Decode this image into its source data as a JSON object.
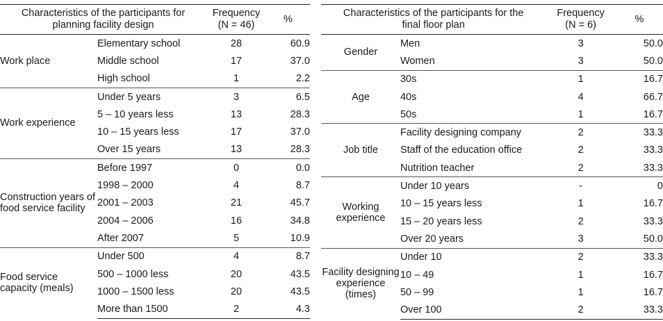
{
  "left_table": {
    "headers": {
      "characteristics": "Characteristics of the participants for planning facility design",
      "frequency": "Frequency (N = 46)",
      "percent": "%"
    },
    "groups": [
      {
        "label": "Work place",
        "rows": [
          {
            "category": "Elementary school",
            "frequency": "28",
            "percent": "60.9"
          },
          {
            "category": "Middle school",
            "frequency": "17",
            "percent": "37.0"
          },
          {
            "category": "High school",
            "frequency": "1",
            "percent": "2.2"
          }
        ]
      },
      {
        "label": "Work experience",
        "rows": [
          {
            "category": "Under 5 years",
            "frequency": "3",
            "percent": "6.5"
          },
          {
            "category": "5 – 10 years less",
            "frequency": "13",
            "percent": "28.3"
          },
          {
            "category": "10 – 15 years less",
            "frequency": "17",
            "percent": "37.0"
          },
          {
            "category": "Over 15 years",
            "frequency": "13",
            "percent": "28.3"
          }
        ]
      },
      {
        "label": "Construction years of food service facility",
        "rows": [
          {
            "category": "Before 1997",
            "frequency": "0",
            "percent": "0.0"
          },
          {
            "category": "1998 – 2000",
            "frequency": "4",
            "percent": "8.7"
          },
          {
            "category": "2001 – 2003",
            "frequency": "21",
            "percent": "45.7"
          },
          {
            "category": "2004 – 2006",
            "frequency": "16",
            "percent": "34.8"
          },
          {
            "category": "After 2007",
            "frequency": "5",
            "percent": "10.9"
          }
        ]
      },
      {
        "label": "Food service capacity (meals)",
        "rows": [
          {
            "category": "Under 500",
            "frequency": "4",
            "percent": "8.7"
          },
          {
            "category": "500 – 1000 less",
            "frequency": "20",
            "percent": "43.5"
          },
          {
            "category": "1000 – 1500 less",
            "frequency": "20",
            "percent": "43.5"
          },
          {
            "category": "More than 1500",
            "frequency": "2",
            "percent": "4.3"
          }
        ]
      }
    ]
  },
  "right_table": {
    "headers": {
      "characteristics": "Characteristics of the participants for the final floor plan",
      "frequency": "Frequency (N = 6)",
      "percent": "%"
    },
    "groups": [
      {
        "label": "Gender",
        "rows": [
          {
            "category": "Men",
            "frequency": "3",
            "percent": "50.0"
          },
          {
            "category": "Women",
            "frequency": "3",
            "percent": "50.0"
          }
        ]
      },
      {
        "label": "Age",
        "rows": [
          {
            "category": "30s",
            "frequency": "1",
            "percent": "16.7"
          },
          {
            "category": "40s",
            "frequency": "4",
            "percent": "66.7"
          },
          {
            "category": "50s",
            "frequency": "1",
            "percent": "16.7"
          }
        ]
      },
      {
        "label": "Job title",
        "rows": [
          {
            "category": "Facility designing company",
            "frequency": "2",
            "percent": "33.3"
          },
          {
            "category": "Staff of the education office",
            "frequency": "2",
            "percent": "33.3"
          },
          {
            "category": "Nutrition teacher",
            "frequency": "2",
            "percent": "33.3"
          }
        ]
      },
      {
        "label": "Working experience",
        "rows": [
          {
            "category": "Under 10 years",
            "frequency": "-",
            "percent": "0"
          },
          {
            "category": "10 – 15 years less",
            "frequency": "1",
            "percent": "16.7"
          },
          {
            "category": "15 – 20 years less",
            "frequency": "2",
            "percent": "33.3"
          },
          {
            "category": "Over 20 years",
            "frequency": "3",
            "percent": "50.0"
          }
        ]
      },
      {
        "label": "Facility designing experience (times)",
        "rows": [
          {
            "category": "Under 10",
            "frequency": "2",
            "percent": "33.3"
          },
          {
            "category": "10 – 49",
            "frequency": "1",
            "percent": "16.7"
          },
          {
            "category": "50 – 99",
            "frequency": "1",
            "percent": "16.7"
          },
          {
            "category": "Over 100",
            "frequency": "2",
            "percent": "33.3"
          }
        ]
      }
    ]
  }
}
